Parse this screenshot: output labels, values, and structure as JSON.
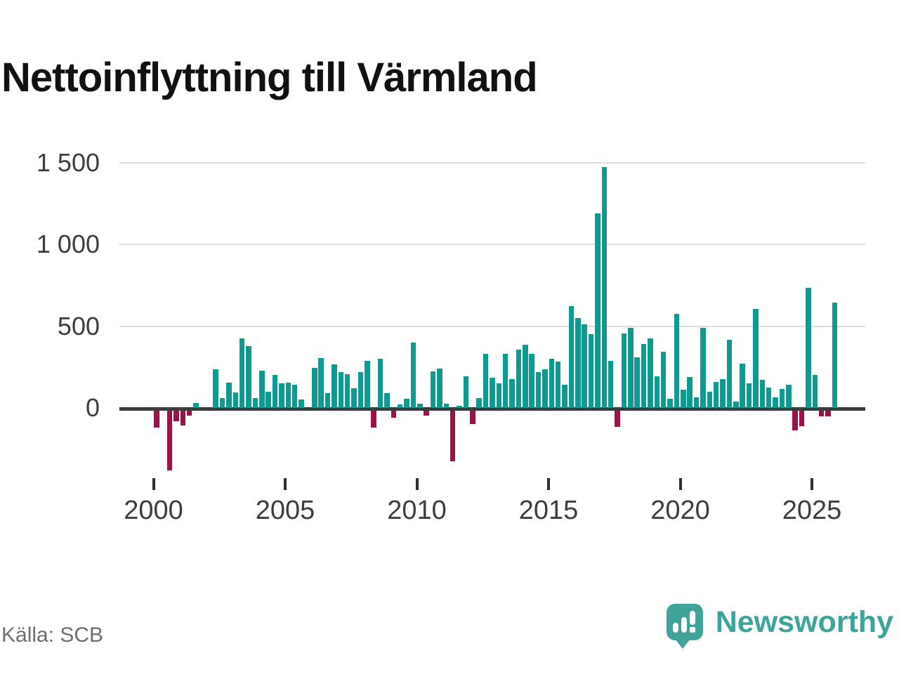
{
  "title": "Nettoinflyttning till Värmland",
  "source": "Källa: SCB",
  "logo": {
    "wordmark": "Newsworthy"
  },
  "colors": {
    "positive_bar": "#0D9A91",
    "negative_bar": "#9E1148",
    "axis": "#3B3B3B",
    "gridline": "#DCDCDC",
    "logo_teal": "#3FA39A"
  },
  "chart_data": {
    "type": "bar",
    "title": "Nettoinflyttning till Värmland",
    "xlabel": "",
    "ylabel": "",
    "x_unit": "quarter",
    "x_tick_labels": [
      "2000",
      "2005",
      "2010",
      "2015",
      "2020",
      "2025"
    ],
    "y_tick_labels": [
      "1 500",
      "1 000",
      "500",
      "0"
    ],
    "y_tick_values": [
      1500,
      1000,
      500,
      0
    ],
    "ylim": [
      -400,
      1560
    ],
    "grid": "horizontal",
    "legend": "none",
    "series_by_year": [
      {
        "year": 2000,
        "values": [
          -105,
          0,
          -365,
          -65
        ]
      },
      {
        "year": 2001,
        "values": [
          -90,
          -30,
          30,
          0
        ]
      },
      {
        "year": 2002,
        "values": [
          0,
          235,
          60,
          155
        ]
      },
      {
        "year": 2003,
        "values": [
          95,
          425,
          380,
          60
        ]
      },
      {
        "year": 2004,
        "values": [
          230,
          100,
          200,
          150
        ]
      },
      {
        "year": 2005,
        "values": [
          155,
          140,
          50,
          0
        ]
      },
      {
        "year": 2006,
        "values": [
          245,
          305,
          90,
          265
        ]
      },
      {
        "year": 2007,
        "values": [
          220,
          205,
          120,
          220
        ]
      },
      {
        "year": 2008,
        "values": [
          290,
          -105,
          300,
          90
        ]
      },
      {
        "year": 2009,
        "values": [
          -45,
          20,
          55,
          400
        ]
      },
      {
        "year": 2010,
        "values": [
          25,
          -30,
          225,
          240
        ]
      },
      {
        "year": 2011,
        "values": [
          25,
          -310,
          15,
          195
        ]
      },
      {
        "year": 2012,
        "values": [
          -80,
          60,
          330,
          185
        ]
      },
      {
        "year": 2013,
        "values": [
          150,
          330,
          175,
          355
        ]
      },
      {
        "year": 2014,
        "values": [
          385,
          330,
          220,
          235
        ]
      },
      {
        "year": 2015,
        "values": [
          300,
          285,
          140,
          625
        ]
      },
      {
        "year": 2016,
        "values": [
          550,
          510,
          450,
          1190
        ]
      },
      {
        "year": 2017,
        "values": [
          1475,
          290,
          -100,
          455
        ]
      },
      {
        "year": 2018,
        "values": [
          490,
          310,
          390,
          425
        ]
      },
      {
        "year": 2019,
        "values": [
          195,
          345,
          55,
          575
        ]
      },
      {
        "year": 2020,
        "values": [
          110,
          190,
          65,
          490
        ]
      },
      {
        "year": 2021,
        "values": [
          100,
          160,
          175,
          415
        ]
      },
      {
        "year": 2022,
        "values": [
          40,
          270,
          150,
          605
        ]
      },
      {
        "year": 2023,
        "values": [
          170,
          125,
          65,
          115
        ]
      },
      {
        "year": 2024,
        "values": [
          140,
          -120,
          -95,
          735
        ]
      },
      {
        "year": 2025,
        "values": [
          200,
          -35,
          -35,
          645
        ]
      }
    ]
  }
}
